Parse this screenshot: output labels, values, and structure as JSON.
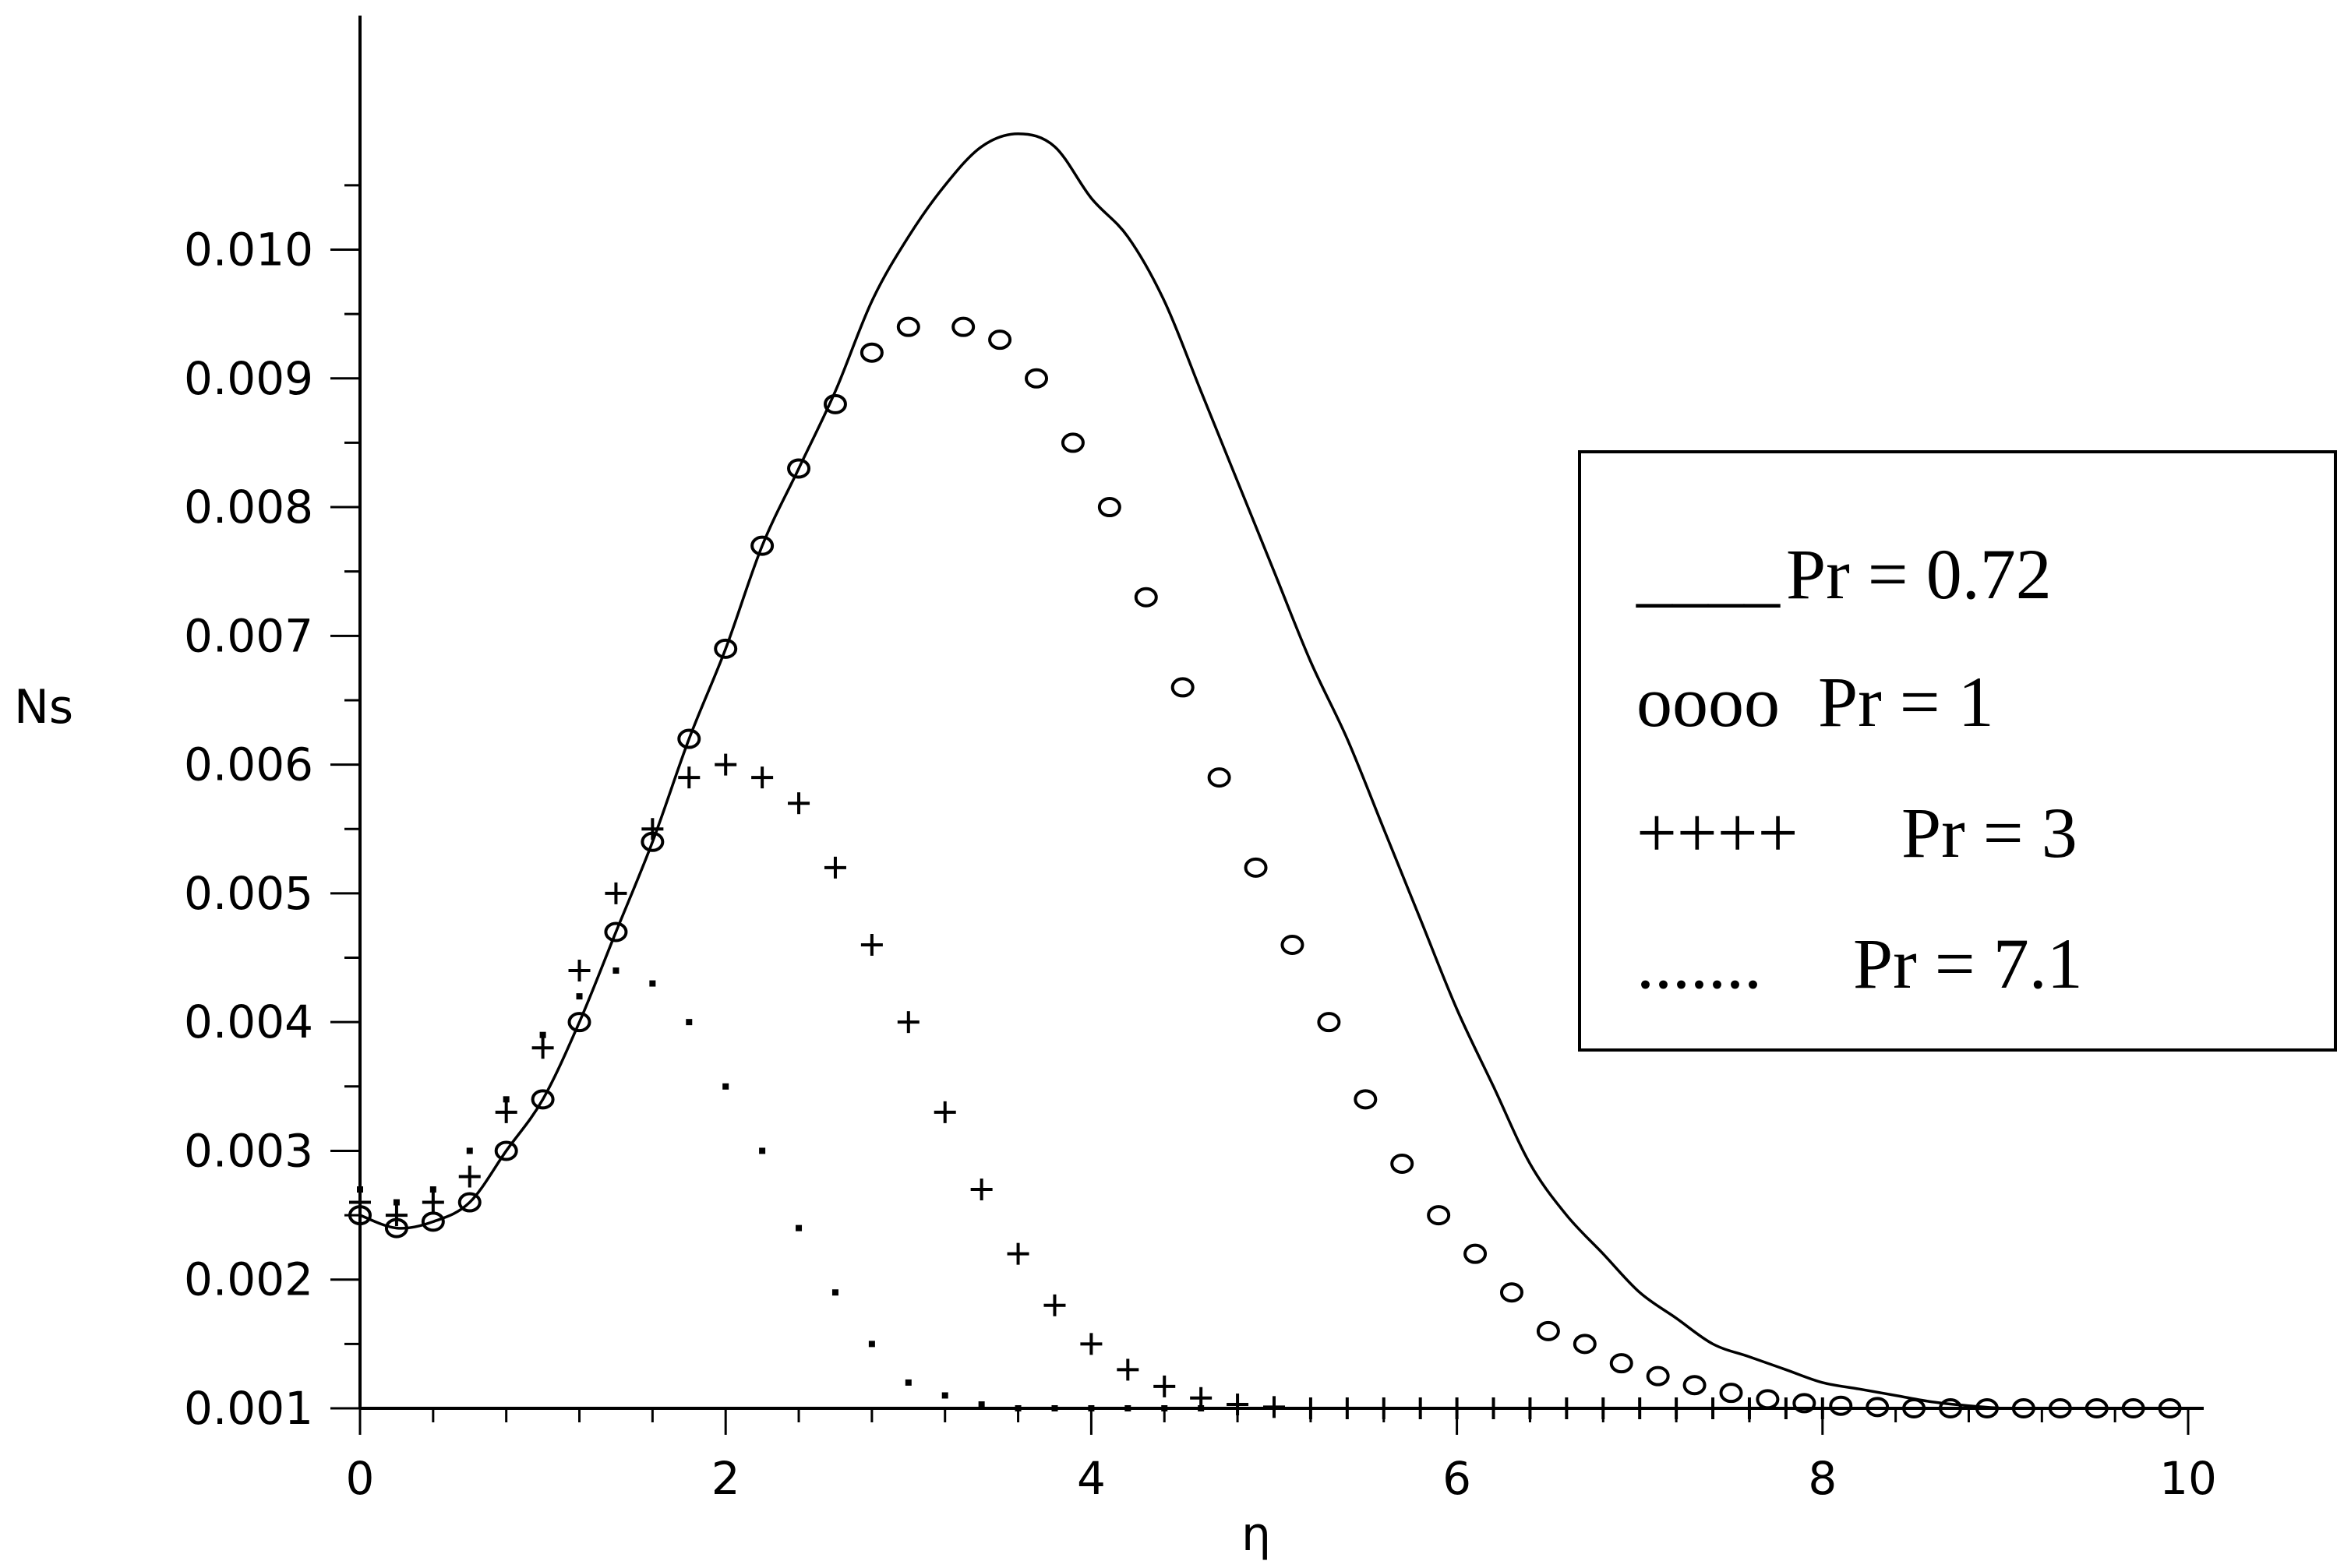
{
  "chart_data": {
    "type": "line",
    "title": "",
    "xlabel": "η",
    "ylabel": "Ns",
    "xlim": [
      0,
      10
    ],
    "ylim": [
      0.001,
      0.011
    ],
    "x_ticks": [
      0,
      2,
      4,
      6,
      8,
      10
    ],
    "x_tick_labels": [
      "0",
      "2",
      "4",
      "6",
      "8",
      "10"
    ],
    "y_ticks": [
      0.001,
      0.002,
      0.003,
      0.004,
      0.005,
      0.006,
      0.007,
      0.008,
      0.009,
      0.01
    ],
    "y_tick_labels": [
      "0.001",
      "0.002",
      "0.003",
      "0.004",
      "0.005",
      "0.006",
      "0.007",
      "0.008",
      "0.009",
      "0.010"
    ],
    "grid": false,
    "legend_position": "right",
    "series": [
      {
        "name": "Pr = 0.72",
        "legend_marker": "____",
        "style": "solid",
        "x": [
          0,
          0.2,
          0.4,
          0.6,
          0.8,
          1.0,
          1.2,
          1.4,
          1.6,
          1.8,
          2.0,
          2.2,
          2.4,
          2.6,
          2.8,
          3.0,
          3.2,
          3.4,
          3.6,
          3.8,
          4.0,
          4.2,
          4.4,
          4.6,
          4.8,
          5.0,
          5.2,
          5.4,
          5.6,
          5.8,
          6.0,
          6.2,
          6.4,
          6.6,
          6.8,
          7.0,
          7.2,
          7.4,
          7.6,
          7.8,
          8.0,
          8.2,
          8.4,
          8.6,
          8.8,
          9.0,
          9.2,
          9.4,
          9.6,
          9.8,
          10.0
        ],
        "values": [
          0.0025,
          0.0024,
          0.00245,
          0.0026,
          0.003,
          0.0034,
          0.004,
          0.0047,
          0.0054,
          0.0062,
          0.0069,
          0.0077,
          0.0083,
          0.0089,
          0.0096,
          0.0101,
          0.0105,
          0.0108,
          0.0109,
          0.0108,
          0.0104,
          0.0101,
          0.0096,
          0.0089,
          0.0082,
          0.0075,
          0.0068,
          0.0062,
          0.0055,
          0.0048,
          0.0041,
          0.0035,
          0.0029,
          0.0025,
          0.0022,
          0.0019,
          0.0017,
          0.0015,
          0.0014,
          0.0013,
          0.0012,
          0.00115,
          0.0011,
          0.00105,
          0.00102,
          0.001,
          0.001,
          0.001,
          0.001,
          0.001,
          0.001
        ]
      },
      {
        "name": "Pr = 1",
        "legend_marker": "oooo",
        "style": "circle",
        "x": [
          0,
          0.2,
          0.4,
          0.6,
          0.8,
          1.0,
          1.2,
          1.4,
          1.6,
          1.8,
          2.0,
          2.2,
          2.4,
          2.6,
          2.8,
          3.0,
          3.3,
          3.5,
          3.7,
          3.9,
          4.1,
          4.3,
          4.5,
          4.7,
          4.9,
          5.1,
          5.3,
          5.5,
          5.7,
          5.9,
          6.1,
          6.3,
          6.5,
          6.7,
          6.9,
          7.1,
          7.3,
          7.5,
          7.7,
          7.9,
          8.1,
          8.3,
          8.5,
          8.7,
          8.9,
          9.1,
          9.3,
          9.5,
          9.7,
          9.9
        ],
        "values": [
          0.0025,
          0.0024,
          0.00245,
          0.0026,
          0.003,
          0.0034,
          0.004,
          0.0047,
          0.0054,
          0.0062,
          0.0069,
          0.0077,
          0.0083,
          0.0088,
          0.0092,
          0.0094,
          0.0094,
          0.0093,
          0.009,
          0.0085,
          0.008,
          0.0073,
          0.0066,
          0.0059,
          0.0052,
          0.0046,
          0.004,
          0.0034,
          0.0029,
          0.0025,
          0.0022,
          0.0019,
          0.0016,
          0.0015,
          0.00135,
          0.00125,
          0.00118,
          0.00112,
          0.00107,
          0.00104,
          0.00102,
          0.00101,
          0.001,
          0.001,
          0.001,
          0.001,
          0.001,
          0.001,
          0.001,
          0.001
        ]
      },
      {
        "name": "Pr = 3",
        "legend_marker": "++++",
        "style": "plus",
        "x": [
          0,
          0.2,
          0.4,
          0.6,
          0.8,
          1.0,
          1.2,
          1.4,
          1.6,
          1.8,
          2.0,
          2.2,
          2.4,
          2.6,
          2.8,
          3.0,
          3.2,
          3.4,
          3.6,
          3.8,
          4.0,
          4.2,
          4.4,
          4.6,
          4.8,
          5.0,
          5.2,
          5.4,
          5.6,
          5.8,
          6.0,
          6.2,
          6.4,
          6.6,
          6.8,
          7.0,
          7.2,
          7.4,
          7.6,
          7.8,
          8.0
        ],
        "values": [
          0.0026,
          0.0025,
          0.0026,
          0.0028,
          0.0033,
          0.0038,
          0.0044,
          0.005,
          0.0055,
          0.0059,
          0.006,
          0.0059,
          0.0057,
          0.0052,
          0.0046,
          0.004,
          0.0033,
          0.0027,
          0.0022,
          0.0018,
          0.0015,
          0.0013,
          0.00117,
          0.00108,
          0.00103,
          0.00101,
          0.001,
          0.001,
          0.001,
          0.001,
          0.001,
          0.001,
          0.001,
          0.001,
          0.001,
          0.001,
          0.001,
          0.001,
          0.001,
          0.001,
          0.001
        ]
      },
      {
        "name": "Pr = 7.1",
        "legend_marker": ".......",
        "style": "dot",
        "x": [
          0,
          0.2,
          0.4,
          0.6,
          0.8,
          1.0,
          1.2,
          1.4,
          1.6,
          1.8,
          2.0,
          2.2,
          2.4,
          2.6,
          2.8,
          3.0,
          3.2,
          3.4,
          3.6,
          3.8,
          4.0,
          4.2,
          4.4,
          4.6
        ],
        "values": [
          0.0027,
          0.0026,
          0.0027,
          0.003,
          0.0034,
          0.0039,
          0.0042,
          0.0044,
          0.0043,
          0.004,
          0.0035,
          0.003,
          0.0024,
          0.0019,
          0.0015,
          0.0012,
          0.0011,
          0.00103,
          0.001,
          0.001,
          0.001,
          0.001,
          0.001,
          0.001
        ]
      }
    ]
  }
}
